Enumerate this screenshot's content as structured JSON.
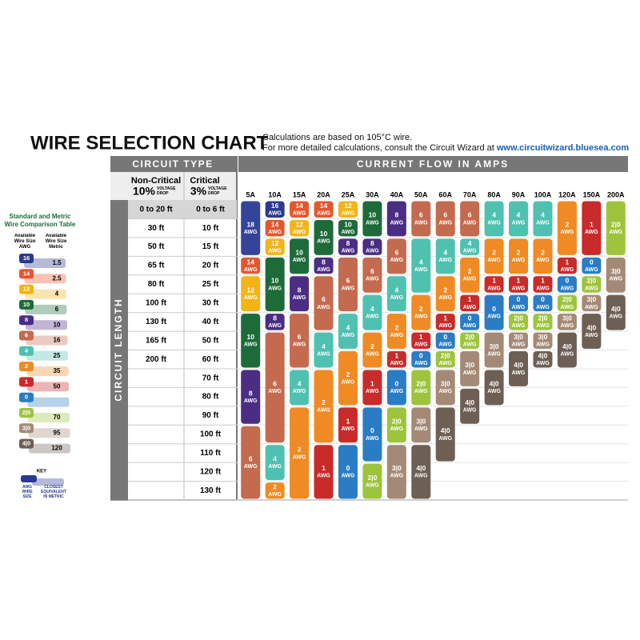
{
  "title": "WIRE SELECTION CHART",
  "notes": {
    "line1": "Calculations are based on 105°C wire.",
    "line2": "For more detailed calculations, consult the Circuit Wizard at",
    "link": "www.circuitwizard.bluesea.com"
  },
  "circuit_type": {
    "heading": "CIRCUIT TYPE",
    "non_critical": {
      "name": "Non-Critical",
      "percent": "10%",
      "drop_label": "VOLTAGE DROP"
    },
    "critical": {
      "name": "Critical",
      "percent": "3%",
      "drop_label": "VOLTAGE DROP"
    }
  },
  "current_heading": "CURRENT FLOW IN AMPS",
  "length_heading": "CIRCUIT LENGTH",
  "awg_unit": "AWG",
  "lengths": [
    [
      "0 to 20 ft",
      "0 to 6 ft"
    ],
    [
      "30 ft",
      "10 ft"
    ],
    [
      "50 ft",
      "15 ft"
    ],
    [
      "65 ft",
      "20 ft"
    ],
    [
      "80 ft",
      "25 ft"
    ],
    [
      "100 ft",
      "30 ft"
    ],
    [
      "130 ft",
      "40 ft"
    ],
    [
      "165 ft",
      "50 ft"
    ],
    [
      "200 ft",
      "60 ft"
    ],
    [
      null,
      "70 ft"
    ],
    [
      null,
      "80 ft"
    ],
    [
      null,
      "90 ft"
    ],
    [
      null,
      "100 ft"
    ],
    [
      null,
      "110 ft"
    ],
    [
      null,
      "120 ft"
    ],
    [
      null,
      "130 ft"
    ]
  ],
  "columns": [
    {
      "amps": "5A",
      "segments": [
        {
          "size": "18",
          "color": "#33449a",
          "rows": [
            0,
            2
          ]
        },
        {
          "size": "14",
          "color": "#e4572e",
          "rows": [
            3,
            3
          ]
        },
        {
          "size": "12",
          "color": "#f2b417",
          "rows": [
            4,
            5
          ]
        },
        {
          "size": "10",
          "color": "#1e6b3a",
          "rows": [
            6,
            8
          ]
        },
        {
          "size": "8",
          "color": "#4b2d84",
          "rows": [
            9,
            11
          ]
        },
        {
          "size": "6",
          "color": "#c46a4e",
          "rows": [
            12,
            15
          ]
        }
      ]
    },
    {
      "amps": "10A",
      "segments": [
        {
          "size": "16",
          "color": "#2b3a8f",
          "rows": [
            0,
            0
          ]
        },
        {
          "size": "14",
          "color": "#e4572e",
          "rows": [
            1,
            1
          ]
        },
        {
          "size": "12",
          "color": "#f2b417",
          "rows": [
            2,
            2
          ]
        },
        {
          "size": "10",
          "color": "#1e6b3a",
          "rows": [
            3,
            5
          ]
        },
        {
          "size": "8",
          "color": "#4b2d84",
          "rows": [
            6,
            6
          ]
        },
        {
          "size": "6",
          "color": "#c46a4e",
          "rows": [
            7,
            12
          ]
        },
        {
          "size": "4",
          "color": "#4fc1b0",
          "rows": [
            13,
            14
          ]
        },
        {
          "size": "2",
          "color": "#f08a24",
          "rows": [
            15,
            15
          ]
        }
      ]
    },
    {
      "amps": "15A",
      "segments": [
        {
          "size": "14",
          "color": "#e4572e",
          "rows": [
            0,
            0
          ]
        },
        {
          "size": "12",
          "color": "#f2b417",
          "rows": [
            1,
            1
          ]
        },
        {
          "size": "10",
          "color": "#1e6b3a",
          "rows": [
            2,
            3
          ]
        },
        {
          "size": "8",
          "color": "#4b2d84",
          "rows": [
            4,
            5
          ]
        },
        {
          "size": "6",
          "color": "#c46a4e",
          "rows": [
            6,
            8
          ]
        },
        {
          "size": "4",
          "color": "#4fc1b0",
          "rows": [
            9,
            10
          ]
        },
        {
          "size": "2",
          "color": "#f08a24",
          "rows": [
            11,
            15
          ]
        }
      ]
    },
    {
      "amps": "20A",
      "segments": [
        {
          "size": "14",
          "color": "#e4572e",
          "rows": [
            0,
            0
          ]
        },
        {
          "size": "10",
          "color": "#1e6b3a",
          "rows": [
            1,
            2
          ]
        },
        {
          "size": "8",
          "color": "#4b2d84",
          "rows": [
            3,
            3
          ]
        },
        {
          "size": "6",
          "color": "#c46a4e",
          "rows": [
            4,
            6
          ]
        },
        {
          "size": "4",
          "color": "#4fc1b0",
          "rows": [
            7,
            8
          ]
        },
        {
          "size": "2",
          "color": "#f08a24",
          "rows": [
            9,
            12
          ]
        },
        {
          "size": "1",
          "color": "#c92a2a",
          "rows": [
            13,
            15
          ]
        }
      ]
    },
    {
      "amps": "25A",
      "segments": [
        {
          "size": "12",
          "color": "#f2b417",
          "rows": [
            0,
            0
          ]
        },
        {
          "size": "10",
          "color": "#1e6b3a",
          "rows": [
            1,
            1
          ]
        },
        {
          "size": "8",
          "color": "#4b2d84",
          "rows": [
            2,
            2
          ]
        },
        {
          "size": "6",
          "color": "#c46a4e",
          "rows": [
            3,
            5
          ]
        },
        {
          "size": "4",
          "color": "#4fc1b0",
          "rows": [
            6,
            7
          ]
        },
        {
          "size": "2",
          "color": "#f08a24",
          "rows": [
            8,
            10
          ]
        },
        {
          "size": "1",
          "color": "#c92a2a",
          "rows": [
            11,
            12
          ]
        },
        {
          "size": "0",
          "color": "#2a7dc4",
          "rows": [
            13,
            15
          ]
        }
      ]
    },
    {
      "amps": "30A",
      "segments": [
        {
          "size": "10",
          "color": "#1e6b3a",
          "rows": [
            0,
            1
          ]
        },
        {
          "size": "8",
          "color": "#4b2d84",
          "rows": [
            2,
            2
          ]
        },
        {
          "size": "6",
          "color": "#c46a4e",
          "rows": [
            3,
            4
          ]
        },
        {
          "size": "4",
          "color": "#4fc1b0",
          "rows": [
            5,
            6
          ]
        },
        {
          "size": "2",
          "color": "#f08a24",
          "rows": [
            7,
            8
          ]
        },
        {
          "size": "1",
          "color": "#c92a2a",
          "rows": [
            9,
            10
          ]
        },
        {
          "size": "0",
          "color": "#2a7dc4",
          "rows": [
            11,
            13
          ]
        },
        {
          "size": "2|0",
          "color": "#9dc43c",
          "rows": [
            14,
            15
          ]
        }
      ]
    },
    {
      "amps": "40A",
      "segments": [
        {
          "size": "8",
          "color": "#4b2d84",
          "rows": [
            0,
            1
          ]
        },
        {
          "size": "6",
          "color": "#c46a4e",
          "rows": [
            2,
            3
          ]
        },
        {
          "size": "4",
          "color": "#4fc1b0",
          "rows": [
            4,
            5
          ]
        },
        {
          "size": "2",
          "color": "#f08a24",
          "rows": [
            6,
            7
          ]
        },
        {
          "size": "1",
          "color": "#c92a2a",
          "rows": [
            8,
            8
          ]
        },
        {
          "size": "0",
          "color": "#2a7dc4",
          "rows": [
            9,
            10
          ]
        },
        {
          "size": "2|0",
          "color": "#9dc43c",
          "rows": [
            11,
            12
          ]
        },
        {
          "size": "3|0",
          "color": "#a48a76",
          "rows": [
            13,
            15
          ]
        }
      ]
    },
    {
      "amps": "50A",
      "segments": [
        {
          "size": "6",
          "color": "#c46a4e",
          "rows": [
            0,
            1
          ]
        },
        {
          "size": "4",
          "color": "#4fc1b0",
          "rows": [
            2,
            4
          ]
        },
        {
          "size": "2",
          "color": "#f08a24",
          "rows": [
            5,
            6
          ]
        },
        {
          "size": "1",
          "color": "#c92a2a",
          "rows": [
            7,
            7
          ]
        },
        {
          "size": "0",
          "color": "#2a7dc4",
          "rows": [
            8,
            8
          ]
        },
        {
          "size": "2|0",
          "color": "#9dc43c",
          "rows": [
            9,
            10
          ]
        },
        {
          "size": "3|0",
          "color": "#a48a76",
          "rows": [
            11,
            12
          ]
        },
        {
          "size": "4|0",
          "color": "#6e5f55",
          "rows": [
            13,
            15
          ]
        }
      ]
    },
    {
      "amps": "60A",
      "segments": [
        {
          "size": "6",
          "color": "#c46a4e",
          "rows": [
            0,
            1
          ]
        },
        {
          "size": "4",
          "color": "#4fc1b0",
          "rows": [
            2,
            3
          ]
        },
        {
          "size": "2",
          "color": "#f08a24",
          "rows": [
            4,
            5
          ]
        },
        {
          "size": "1",
          "color": "#c92a2a",
          "rows": [
            6,
            6
          ]
        },
        {
          "size": "0",
          "color": "#2a7dc4",
          "rows": [
            7,
            7
          ]
        },
        {
          "size": "2|0",
          "color": "#9dc43c",
          "rows": [
            8,
            8
          ]
        },
        {
          "size": "3|0",
          "color": "#a48a76",
          "rows": [
            9,
            10
          ]
        },
        {
          "size": "4|0",
          "color": "#6e5f55",
          "rows": [
            11,
            13
          ]
        }
      ]
    },
    {
      "amps": "70A",
      "segments": [
        {
          "size": "6",
          "color": "#c46a4e",
          "rows": [
            0,
            1
          ]
        },
        {
          "size": "4",
          "color": "#4fc1b0",
          "rows": [
            2,
            2
          ]
        },
        {
          "size": "2",
          "color": "#f08a24",
          "rows": [
            3,
            4
          ]
        },
        {
          "size": "1",
          "color": "#c92a2a",
          "rows": [
            5,
            5
          ]
        },
        {
          "size": "0",
          "color": "#2a7dc4",
          "rows": [
            6,
            6
          ]
        },
        {
          "size": "2|0",
          "color": "#9dc43c",
          "rows": [
            7,
            7
          ]
        },
        {
          "size": "3|0",
          "color": "#a48a76",
          "rows": [
            8,
            9
          ]
        },
        {
          "size": "4|0",
          "color": "#6e5f55",
          "rows": [
            10,
            11
          ]
        }
      ]
    },
    {
      "amps": "80A",
      "segments": [
        {
          "size": "4",
          "color": "#4fc1b0",
          "rows": [
            0,
            1
          ]
        },
        {
          "size": "2",
          "color": "#f08a24",
          "rows": [
            2,
            3
          ]
        },
        {
          "size": "1",
          "color": "#c92a2a",
          "rows": [
            4,
            4
          ]
        },
        {
          "size": "0",
          "color": "#2a7dc4",
          "rows": [
            5,
            6
          ]
        },
        {
          "size": "3|0",
          "color": "#a48a76",
          "rows": [
            7,
            8
          ]
        },
        {
          "size": "4|0",
          "color": "#6e5f55",
          "rows": [
            9,
            10
          ]
        }
      ]
    },
    {
      "amps": "90A",
      "segments": [
        {
          "size": "4",
          "color": "#4fc1b0",
          "rows": [
            0,
            1
          ]
        },
        {
          "size": "2",
          "color": "#f08a24",
          "rows": [
            2,
            3
          ]
        },
        {
          "size": "1",
          "color": "#c92a2a",
          "rows": [
            4,
            4
          ]
        },
        {
          "size": "0",
          "color": "#2a7dc4",
          "rows": [
            5,
            5
          ]
        },
        {
          "size": "2|0",
          "color": "#9dc43c",
          "rows": [
            6,
            6
          ]
        },
        {
          "size": "3|0",
          "color": "#a48a76",
          "rows": [
            7,
            7
          ]
        },
        {
          "size": "4|0",
          "color": "#6e5f55",
          "rows": [
            8,
            9
          ]
        }
      ]
    },
    {
      "amps": "100A",
      "segments": [
        {
          "size": "4",
          "color": "#4fc1b0",
          "rows": [
            0,
            1
          ]
        },
        {
          "size": "2",
          "color": "#f08a24",
          "rows": [
            2,
            3
          ]
        },
        {
          "size": "1",
          "color": "#c92a2a",
          "rows": [
            4,
            4
          ]
        },
        {
          "size": "0",
          "color": "#2a7dc4",
          "rows": [
            5,
            5
          ]
        },
        {
          "size": "2|0",
          "color": "#9dc43c",
          "rows": [
            6,
            6
          ]
        },
        {
          "size": "3|0",
          "color": "#a48a76",
          "rows": [
            7,
            7
          ]
        },
        {
          "size": "4|0",
          "color": "#6e5f55",
          "rows": [
            8,
            8
          ]
        }
      ]
    },
    {
      "amps": "120A",
      "segments": [
        {
          "size": "2",
          "color": "#f08a24",
          "rows": [
            0,
            2
          ]
        },
        {
          "size": "1",
          "color": "#c92a2a",
          "rows": [
            3,
            3
          ]
        },
        {
          "size": "0",
          "color": "#2a7dc4",
          "rows": [
            4,
            4
          ]
        },
        {
          "size": "2|0",
          "color": "#9dc43c",
          "rows": [
            5,
            5
          ]
        },
        {
          "size": "3|0",
          "color": "#a48a76",
          "rows": [
            6,
            6
          ]
        },
        {
          "size": "4|0",
          "color": "#6e5f55",
          "rows": [
            7,
            8
          ]
        }
      ]
    },
    {
      "amps": "150A",
      "segments": [
        {
          "size": "1",
          "color": "#c92a2a",
          "rows": [
            0,
            2
          ]
        },
        {
          "size": "0",
          "color": "#2a7dc4",
          "rows": [
            3,
            3
          ]
        },
        {
          "size": "2|0",
          "color": "#9dc43c",
          "rows": [
            4,
            4
          ]
        },
        {
          "size": "3|0",
          "color": "#a48a76",
          "rows": [
            5,
            5
          ]
        },
        {
          "size": "4|0",
          "color": "#6e5f55",
          "rows": [
            6,
            7
          ]
        }
      ]
    },
    {
      "amps": "200A",
      "segments": [
        {
          "size": "2|0",
          "color": "#9dc43c",
          "rows": [
            0,
            2
          ]
        },
        {
          "size": "3|0",
          "color": "#a48a76",
          "rows": [
            3,
            4
          ]
        },
        {
          "size": "4|0",
          "color": "#6e5f55",
          "rows": [
            5,
            6
          ]
        }
      ]
    }
  ],
  "comparison": {
    "title": "Standard and Metric Wire Comparison Table",
    "awg_header": "Available Wire Size AWG",
    "metric_header": "Available Wire Size Metric",
    "rows": [
      {
        "awg": "16",
        "metric": "1.5",
        "color": "#2b3a8f"
      },
      {
        "awg": "14",
        "metric": "2.5",
        "color": "#e4572e"
      },
      {
        "awg": "12",
        "metric": "4",
        "color": "#f2b417"
      },
      {
        "awg": "10",
        "metric": "6",
        "color": "#1e6b3a"
      },
      {
        "awg": "8",
        "metric": "10",
        "color": "#4b2d84"
      },
      {
        "awg": "6",
        "metric": "16",
        "color": "#c46a4e"
      },
      {
        "awg": "4",
        "metric": "25",
        "color": "#4fc1b0"
      },
      {
        "awg": "2",
        "metric": "35",
        "color": "#f08a24"
      },
      {
        "awg": "1",
        "metric": "50",
        "color": "#c92a2a"
      },
      {
        "awg": "0",
        "metric": null,
        "color": "#2a7dc4"
      },
      {
        "awg": "2|0",
        "metric": "70",
        "color": "#9dc43c"
      },
      {
        "awg": "3|0",
        "metric": "95",
        "color": "#a48a76"
      },
      {
        "awg": "4|0",
        "metric": "120",
        "color": "#6e5f55"
      }
    ],
    "key": {
      "heading": "KEY",
      "awg_caption": "AWG WIRE SIZE",
      "metric_caption": "CLOSEST EQUIVALENT IN METRIC"
    }
  }
}
